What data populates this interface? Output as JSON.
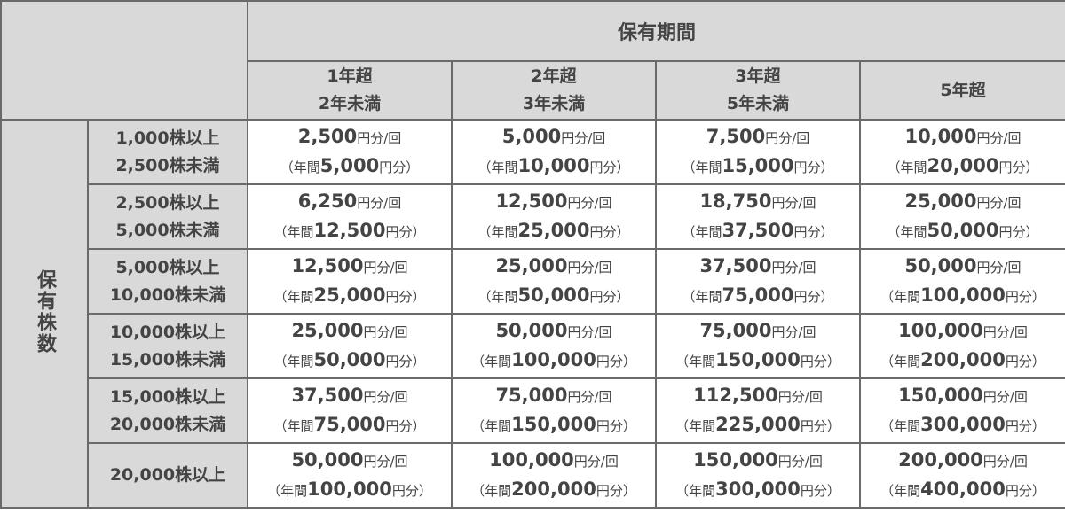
{
  "table": {
    "corner_label": "保有株数",
    "period_header": "保有期間",
    "columns": [
      [
        "1年超",
        "2年未満"
      ],
      [
        "2年超",
        "3年未満"
      ],
      [
        "3年超",
        "5年未満"
      ],
      [
        "5年超"
      ]
    ],
    "rows": [
      {
        "label": [
          "1,000株以上",
          "2,500株未満"
        ],
        "cells": [
          {
            "amount": "2,500",
            "unit": "円分/回",
            "open": "（年間",
            "annual": "5,000",
            "close": "円分）"
          },
          {
            "amount": "5,000",
            "unit": "円分/回",
            "open": "（年間",
            "annual": "10,000",
            "close": "円分）"
          },
          {
            "amount": "7,500",
            "unit": "円分/回",
            "open": "（年間",
            "annual": "15,000",
            "close": "円分）"
          },
          {
            "amount": "10,000",
            "unit": "円分/回",
            "open": "（年間",
            "annual": "20,000",
            "close": "円分）"
          }
        ]
      },
      {
        "label": [
          "2,500株以上",
          "5,000株未満"
        ],
        "cells": [
          {
            "amount": "6,250",
            "unit": "円分/回",
            "open": "（年間",
            "annual": "12,500",
            "close": "円分）"
          },
          {
            "amount": "12,500",
            "unit": "円分/回",
            "open": "（年間",
            "annual": "25,000",
            "close": "円分）"
          },
          {
            "amount": "18,750",
            "unit": "円分/回",
            "open": "（年間",
            "annual": "37,500",
            "close": "円分）"
          },
          {
            "amount": "25,000",
            "unit": "円分/回",
            "open": "（年間",
            "annual": "50,000",
            "close": "円分）"
          }
        ]
      },
      {
        "label": [
          "5,000株以上",
          "10,000株未満"
        ],
        "cells": [
          {
            "amount": "12,500",
            "unit": "円分/回",
            "open": "（年間",
            "annual": "25,000",
            "close": "円分）"
          },
          {
            "amount": "25,000",
            "unit": "円分/回",
            "open": "（年間",
            "annual": "50,000",
            "close": "円分）"
          },
          {
            "amount": "37,500",
            "unit": "円分/回",
            "open": "（年間",
            "annual": "75,000",
            "close": "円分）"
          },
          {
            "amount": "50,000",
            "unit": "円分/回",
            "open": "（年間",
            "annual": "100,000",
            "close": "円分）"
          }
        ]
      },
      {
        "label": [
          "10,000株以上",
          "15,000株未満"
        ],
        "cells": [
          {
            "amount": "25,000",
            "unit": "円分/回",
            "open": "（年間",
            "annual": "50,000",
            "close": "円分）"
          },
          {
            "amount": "50,000",
            "unit": "円分/回",
            "open": "（年間",
            "annual": "100,000",
            "close": "円分）"
          },
          {
            "amount": "75,000",
            "unit": "円分/回",
            "open": "（年間",
            "annual": "150,000",
            "close": "円分）"
          },
          {
            "amount": "100,000",
            "unit": "円分/回",
            "open": "（年間",
            "annual": "200,000",
            "close": "円分）"
          }
        ]
      },
      {
        "label": [
          "15,000株以上",
          "20,000株未満"
        ],
        "cells": [
          {
            "amount": "37,500",
            "unit": "円分/回",
            "open": "（年間",
            "annual": "75,000",
            "close": "円分）"
          },
          {
            "amount": "75,000",
            "unit": "円分/回",
            "open": "（年間",
            "annual": "150,000",
            "close": "円分）"
          },
          {
            "amount": "112,500",
            "unit": "円分/回",
            "open": "（年間",
            "annual": "225,000",
            "close": "円分）"
          },
          {
            "amount": "150,000",
            "unit": "円分/回",
            "open": "（年間",
            "annual": "300,000",
            "close": "円分）"
          }
        ]
      },
      {
        "label": [
          "20,000株以上"
        ],
        "cells": [
          {
            "amount": "50,000",
            "unit": "円分/回",
            "open": "（年間",
            "annual": "100,000",
            "close": "円分）"
          },
          {
            "amount": "100,000",
            "unit": "円分/回",
            "open": "（年間",
            "annual": "200,000",
            "close": "円分）"
          },
          {
            "amount": "150,000",
            "unit": "円分/回",
            "open": "（年間",
            "annual": "300,000",
            "close": "円分）"
          },
          {
            "amount": "200,000",
            "unit": "円分/回",
            "open": "（年間",
            "annual": "400,000",
            "close": "円分）"
          }
        ]
      }
    ]
  }
}
